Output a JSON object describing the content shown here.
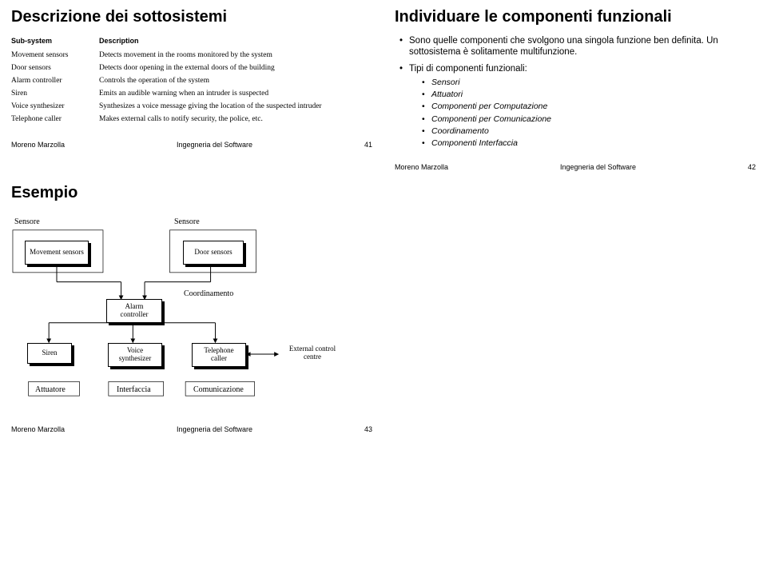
{
  "slide1": {
    "title": "Descrizione dei sottosistemi",
    "table": {
      "headers": [
        "Sub-system",
        "Description"
      ],
      "rows": [
        [
          "Movement sensors",
          "Detects movement in the rooms monitored by the system"
        ],
        [
          "Door sensors",
          "Detects door opening in the external doors of the building"
        ],
        [
          "Alarm controller",
          "Controls the operation of the system"
        ],
        [
          "Siren",
          "Emits an audible warning when an intruder is suspected"
        ],
        [
          "Voice synthesizer",
          "Synthesizes a voice message giving the location of the suspected intruder"
        ],
        [
          "Telephone caller",
          "Makes external calls to notify security, the police, etc."
        ]
      ]
    },
    "footer": {
      "author": "Moreno Marzolla",
      "course": "Ingegneria del Software",
      "page": "41"
    }
  },
  "slide2": {
    "title": "Individuare le componenti funzionali",
    "bullets": [
      "Sono quelle componenti che svolgono una singola funzione ben definita. Un sottosistema è solitamente multifunzione.",
      "Tipi di componenti funzionali:"
    ],
    "subbullets": [
      "Sensori",
      "Attuatori",
      "Componenti per Computazione",
      "Componenti per Comunicazione",
      "Coordinamento",
      "Componenti Interfaccia"
    ],
    "footer": {
      "author": "Moreno Marzolla",
      "course": "Ingegneria del Software",
      "page": "42"
    }
  },
  "slide3": {
    "title": "Esempio",
    "labels": {
      "sensore1": "Sensore",
      "sensore2": "Sensore",
      "coordinamento": "Coordinamento",
      "attuatore": "Attuatore",
      "interfaccia": "Interfaccia",
      "comunicazione": "Comunicazione"
    },
    "boxes": {
      "movement": "Movement sensors",
      "door": "Door sensors",
      "alarm": "Alarm controller",
      "siren": "Siren",
      "voice": "Voice synthesizer",
      "telephone": "Telephone caller"
    },
    "external": "External control centre",
    "footer": {
      "author": "Moreno Marzolla",
      "course": "Ingegneria del Software",
      "page": "43"
    }
  },
  "colors": {
    "bg": "#ffffff",
    "text": "#000000"
  }
}
